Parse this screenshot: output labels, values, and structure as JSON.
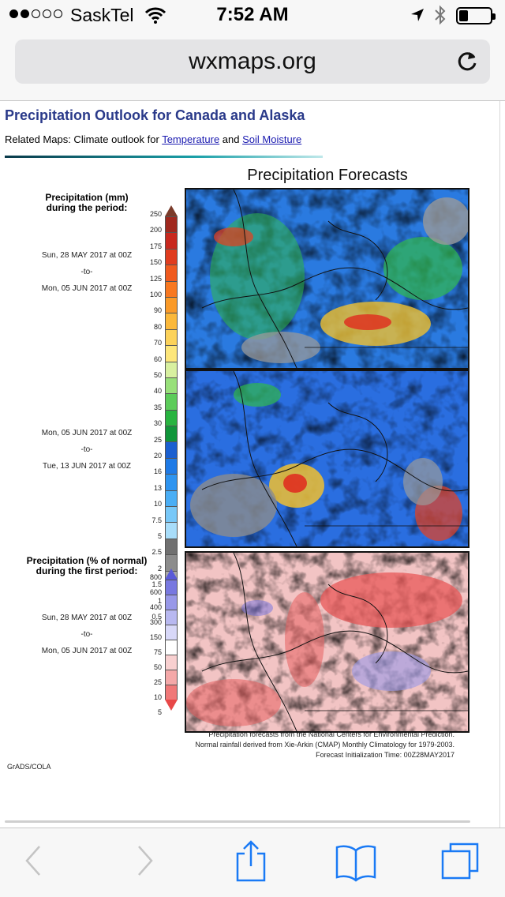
{
  "status_bar": {
    "carrier": "SaskTel",
    "time": "7:52 AM",
    "signal_bars": 2,
    "signal_total": 5,
    "battery_level": 0.3,
    "icons": [
      "wifi-icon",
      "location-arrow-icon",
      "bluetooth-icon",
      "battery-icon"
    ]
  },
  "browser": {
    "url": "wxmaps.org",
    "reload_icon": "reload-icon",
    "toolbar_icons": [
      "back-icon",
      "forward-icon",
      "share-icon",
      "bookmarks-icon",
      "tabs-icon"
    ]
  },
  "page": {
    "title": "Precipitation Outlook for Canada and Alaska",
    "related_prefix": "Related Maps: Climate outlook for ",
    "related_link_temperature": "Temperature",
    "related_and": " and ",
    "related_link_soil": "Soil Moisture",
    "figure_title": "Precipitation Forecasts",
    "legend_amount_title_line1": "Precipitation (mm)",
    "legend_amount_title_line2": "during the period:",
    "period1": {
      "start": "Sun, 28 MAY 2017 at 00Z",
      "sep": "-to-",
      "end": "Mon, 05 JUN 2017 at 00Z"
    },
    "period2": {
      "start": "Mon, 05 JUN 2017 at 00Z",
      "sep": "-to-",
      "end": "Tue, 13 JUN 2017 at 00Z"
    },
    "legend_pct_title_line1": "Precipitation (% of normal)",
    "legend_pct_title_line2": "during the first period:",
    "period3": {
      "start": "Sun, 28 MAY 2017 at 00Z",
      "sep": "-to-",
      "end": "Mon, 05 JUN 2017 at 00Z"
    },
    "amount_ticks": [
      "250",
      "200",
      "175",
      "150",
      "125",
      "100",
      "90",
      "80",
      "70",
      "60",
      "50",
      "40",
      "35",
      "30",
      "25",
      "20",
      "16",
      "13",
      "10",
      "7.5",
      "5",
      "2.5",
      "2",
      "1.5",
      "1",
      "0.5"
    ],
    "amount_colors": [
      "#7a3b2a",
      "#a0281e",
      "#c8281e",
      "#e03c1e",
      "#f05a1e",
      "#f87820",
      "#fa9a28",
      "#fbb83a",
      "#fcd25a",
      "#fde67a",
      "#d8f0a0",
      "#98e07a",
      "#5ccc5a",
      "#28b440",
      "#10963a",
      "#1a5fd0",
      "#1e7ae6",
      "#2e94f0",
      "#4aaef5",
      "#78c8f8",
      "#a8ddfa",
      "#707070",
      "#8c8c8c",
      "#a8a8a8",
      "#c4c4c4",
      "#ffffff"
    ],
    "pct_ticks": [
      "800",
      "600",
      "400",
      "300",
      "150",
      "75",
      "50",
      "25",
      "10",
      "5"
    ],
    "pct_colors": [
      "#5a5ad8",
      "#7878e0",
      "#9898e8",
      "#b8b8f0",
      "#d8d8f8",
      "#ffffff",
      "#f8d0d0",
      "#f4a8a8",
      "#f07878",
      "#e84848"
    ],
    "footnote_line1": "Precipitation forecasts from the National Centers for Environmental Prediction.",
    "footnote_line2": "Normal rainfall derived from Xie-Arkin (CMAP) Monthly Climatology for 1979-2003.",
    "footnote_line3": "Forecast Initialization Time: 00Z28MAY2017",
    "credit": "GrADS/COLA"
  }
}
